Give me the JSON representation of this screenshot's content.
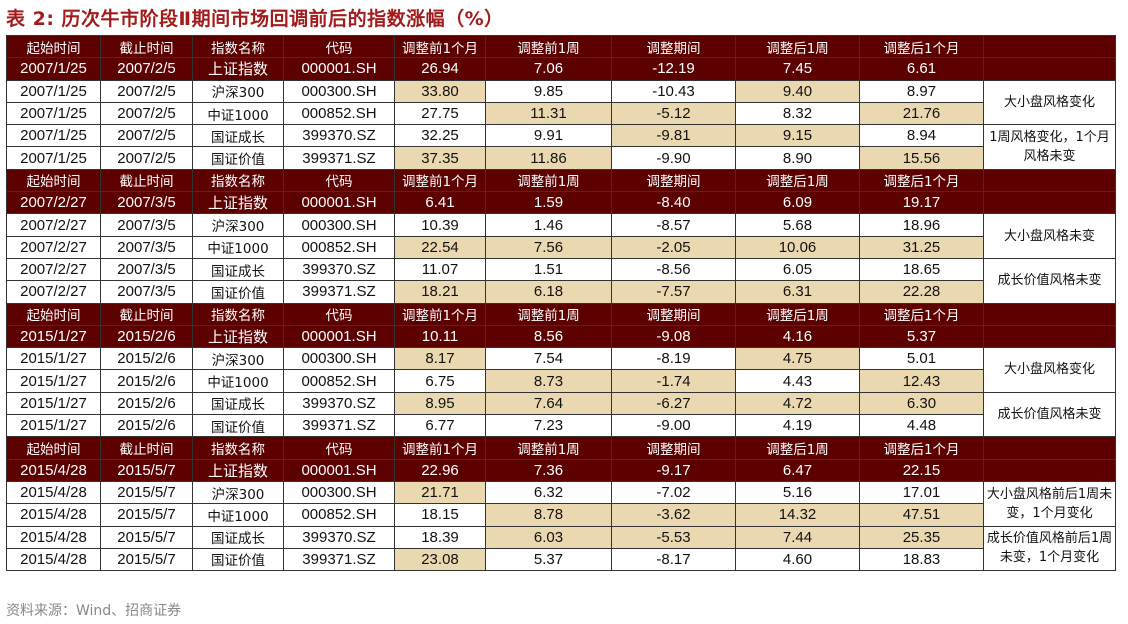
{
  "title": "表 2: 历次牛市阶段Ⅱ期间市场回调前后的指数涨幅（%）",
  "source": "资料来源：Wind、招商证券",
  "colors": {
    "header_bg": "#5c0000",
    "highlight": "#ead9b0"
  },
  "headers": [
    "起始时间",
    "截止时间",
    "指数名称",
    "代码",
    "调整前1个月",
    "调整前1周",
    "调整期间",
    "调整后1周",
    "调整后1个月",
    ""
  ],
  "blocks": [
    {
      "start": "2007/1/25",
      "end": "2007/2/5",
      "rows": [
        {
          "name": "上证指数",
          "code": "000001.SH",
          "values": [
            "26.94",
            "7.06",
            "-12.19",
            "7.45",
            "6.61"
          ],
          "highlight": [
            0,
            0,
            0,
            0,
            0
          ]
        },
        {
          "name": "沪深300",
          "code": "000300.SH",
          "values": [
            "33.80",
            "9.85",
            "-10.43",
            "9.40",
            "8.97"
          ],
          "highlight": [
            1,
            0,
            0,
            1,
            0
          ]
        },
        {
          "name": "中证1000",
          "code": "000852.SH",
          "values": [
            "27.75",
            "11.31",
            "-5.12",
            "8.32",
            "21.76"
          ],
          "highlight": [
            0,
            1,
            1,
            0,
            1
          ]
        },
        {
          "name": "国证成长",
          "code": "399370.SZ",
          "values": [
            "32.25",
            "9.91",
            "-9.81",
            "9.15",
            "8.94"
          ],
          "highlight": [
            0,
            0,
            1,
            1,
            0
          ]
        },
        {
          "name": "国证价值",
          "code": "399371.SZ",
          "values": [
            "37.35",
            "11.86",
            "-9.90",
            "8.90",
            "15.56"
          ],
          "highlight": [
            1,
            1,
            0,
            0,
            1
          ]
        }
      ],
      "notes": [
        "大小盘风格变化",
        "1周风格变化，1个月风格未变"
      ]
    },
    {
      "start": "2007/2/27",
      "end": "2007/3/5",
      "rows": [
        {
          "name": "上证指数",
          "code": "000001.SH",
          "values": [
            "6.41",
            "1.59",
            "-8.40",
            "6.09",
            "19.17"
          ],
          "highlight": [
            0,
            0,
            0,
            0,
            0
          ]
        },
        {
          "name": "沪深300",
          "code": "000300.SH",
          "values": [
            "10.39",
            "1.46",
            "-8.57",
            "5.68",
            "18.96"
          ],
          "highlight": [
            0,
            0,
            0,
            0,
            0
          ]
        },
        {
          "name": "中证1000",
          "code": "000852.SH",
          "values": [
            "22.54",
            "7.56",
            "-2.05",
            "10.06",
            "31.25"
          ],
          "highlight": [
            1,
            1,
            1,
            1,
            1
          ]
        },
        {
          "name": "国证成长",
          "code": "399370.SZ",
          "values": [
            "11.07",
            "1.51",
            "-8.56",
            "6.05",
            "18.65"
          ],
          "highlight": [
            0,
            0,
            0,
            0,
            0
          ]
        },
        {
          "name": "国证价值",
          "code": "399371.SZ",
          "values": [
            "18.21",
            "6.18",
            "-7.57",
            "6.31",
            "22.28"
          ],
          "highlight": [
            1,
            1,
            1,
            1,
            1
          ]
        }
      ],
      "notes": [
        "大小盘风格未变",
        "成长价值风格未变"
      ]
    },
    {
      "start": "2015/1/27",
      "end": "2015/2/6",
      "rows": [
        {
          "name": "上证指数",
          "code": "000001.SH",
          "values": [
            "10.11",
            "8.56",
            "-9.08",
            "4.16",
            "5.37"
          ],
          "highlight": [
            0,
            0,
            0,
            0,
            0
          ]
        },
        {
          "name": "沪深300",
          "code": "000300.SH",
          "values": [
            "8.17",
            "7.54",
            "-8.19",
            "4.75",
            "5.01"
          ],
          "highlight": [
            1,
            0,
            0,
            1,
            0
          ]
        },
        {
          "name": "中证1000",
          "code": "000852.SH",
          "values": [
            "6.75",
            "8.73",
            "-1.74",
            "4.43",
            "12.43"
          ],
          "highlight": [
            0,
            1,
            1,
            0,
            1
          ]
        },
        {
          "name": "国证成长",
          "code": "399370.SZ",
          "values": [
            "8.95",
            "7.64",
            "-6.27",
            "4.72",
            "6.30"
          ],
          "highlight": [
            1,
            1,
            1,
            1,
            1
          ]
        },
        {
          "name": "国证价值",
          "code": "399371.SZ",
          "values": [
            "6.77",
            "7.23",
            "-9.00",
            "4.19",
            "4.48"
          ],
          "highlight": [
            0,
            0,
            0,
            0,
            0
          ]
        }
      ],
      "notes": [
        "大小盘风格变化",
        "成长价值风格未变"
      ]
    },
    {
      "start": "2015/4/28",
      "end": "2015/5/7",
      "rows": [
        {
          "name": "上证指数",
          "code": "000001.SH",
          "values": [
            "22.96",
            "7.36",
            "-9.17",
            "6.47",
            "22.15"
          ],
          "highlight": [
            0,
            0,
            0,
            0,
            0
          ]
        },
        {
          "name": "沪深300",
          "code": "000300.SH",
          "values": [
            "21.71",
            "6.32",
            "-7.02",
            "5.16",
            "17.01"
          ],
          "highlight": [
            1,
            0,
            0,
            0,
            0
          ]
        },
        {
          "name": "中证1000",
          "code": "000852.SH",
          "values": [
            "18.15",
            "8.78",
            "-3.62",
            "14.32",
            "47.51"
          ],
          "highlight": [
            0,
            1,
            1,
            1,
            1
          ]
        },
        {
          "name": "国证成长",
          "code": "399370.SZ",
          "values": [
            "18.39",
            "6.03",
            "-5.53",
            "7.44",
            "25.35"
          ],
          "highlight": [
            0,
            1,
            1,
            1,
            1
          ]
        },
        {
          "name": "国证价值",
          "code": "399371.SZ",
          "values": [
            "23.08",
            "5.37",
            "-8.17",
            "4.60",
            "18.83"
          ],
          "highlight": [
            1,
            0,
            0,
            0,
            0
          ]
        }
      ],
      "notes": [
        "大小盘风格前后1周未变，1个月变化",
        "成长价值风格前后1周未变，1个月变化"
      ]
    }
  ]
}
